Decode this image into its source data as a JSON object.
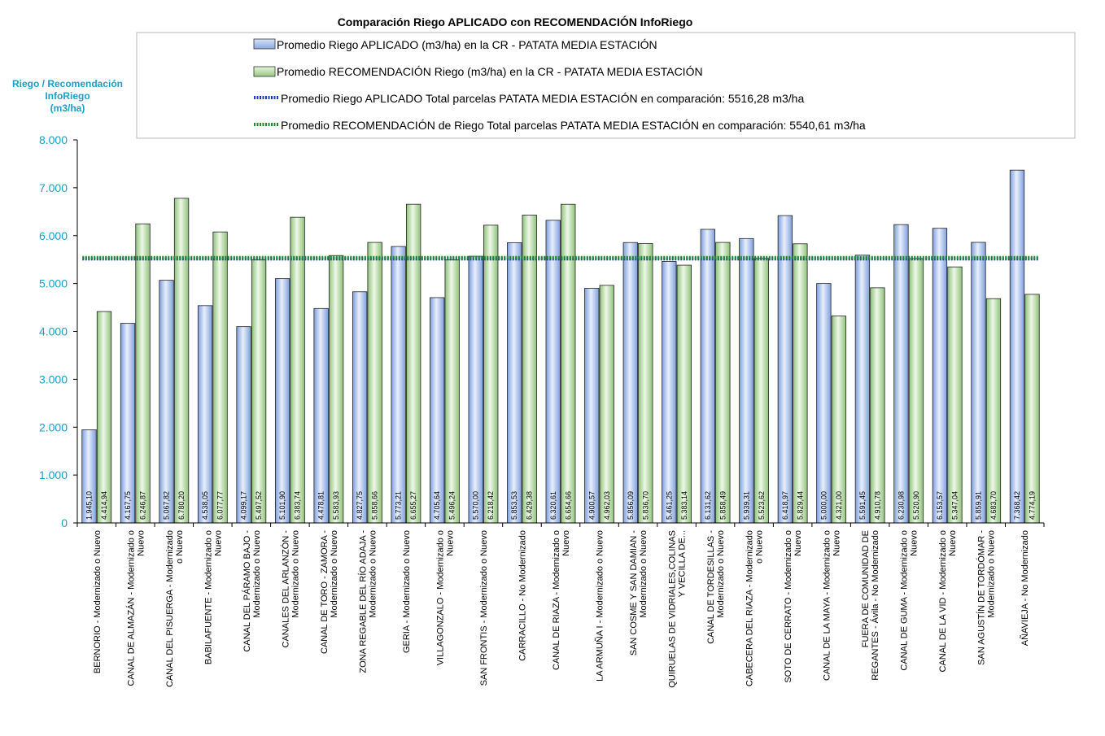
{
  "chart_data": {
    "type": "bar",
    "title": "Comparación Riego APLICADO  con RECOMENDACIÓN  InfoRiego",
    "ylabel_lines": [
      "Riego / Recomendación",
      "InfoRiego",
      "(m3/ha)"
    ],
    "ylim": [
      0,
      8000
    ],
    "yticks": [
      "0",
      "1.000",
      "2.000",
      "3.000",
      "4.000",
      "5.000",
      "6.000",
      "7.000",
      "8.000"
    ],
    "categories": [
      [
        "BERNORIO - Modernizado o Nuevo"
      ],
      [
        "CANAL DE ALMAZÁN - Modernizado o",
        "Nuevo"
      ],
      [
        "CANAL DEL PISUERGA - Modernizado",
        "o Nuevo"
      ],
      [
        "BABILAFUENTE - Modernizado o",
        "Nuevo"
      ],
      [
        "CANAL DEL PÁRAMO BAJO -",
        "Modernizado o Nuevo"
      ],
      [
        "CANALES DEL ARLANZÓN -",
        "Modernizado o Nuevo"
      ],
      [
        "CANAL DE TORO - ZAMORA -",
        "Modernizado o Nuevo"
      ],
      [
        "ZONA REGABLE DEL RÍO ADAJA -",
        "Modernizado o Nuevo"
      ],
      [
        "GERIA - Modernizado o Nuevo"
      ],
      [
        "VILLAGONZALO - Modernizado o",
        "Nuevo"
      ],
      [
        "SAN FRONTIS - Modernizado o Nuevo"
      ],
      [
        "CARRACILLO - No Modernizado"
      ],
      [
        "CANAL DE RIAZA - Modernizado o",
        "Nuevo"
      ],
      [
        "LA ARMUÑA I - Modernizado o Nuevo"
      ],
      [
        "SAN COSME Y SAN DAMIAN -",
        "Modernizado o Nuevo"
      ],
      [
        "QUIRUELAS DE VIDRIALES,COLINAS",
        "Y VECILLA DE..."
      ],
      [
        "CANAL DE TORDESILLAS -",
        "Modernizado o Nuevo"
      ],
      [
        "CABECERA DEL RIAZA - Modernizado",
        "o Nuevo"
      ],
      [
        "SOTO DE CERRATO - Modernizado o",
        "Nuevo"
      ],
      [
        "CANAL DE LA MAYA - Modernizado o",
        "Nuevo"
      ],
      [
        "FUERA DE COMUNIDAD DE",
        "REGANTES - Ávila - No Modernizado"
      ],
      [
        "CANAL DE GUMA - Modernizado o",
        "Nuevo"
      ],
      [
        "CANAL DE LA VID - Modernizado o",
        "Nuevo"
      ],
      [
        "SAN AGUSTÍN DE TORDÓMAR -",
        "Modernizado o Nuevo"
      ],
      [
        "AÑAVIEJA - No Modernizado"
      ]
    ],
    "series": [
      {
        "name": "Promedio Riego APLICADO (m3/ha) en la CR - PATATA MEDIA ESTACIÓN",
        "color": "#a9c4ec",
        "values": [
          1945.1,
          4167.75,
          5067.82,
          4538.05,
          4099.17,
          5101.9,
          4478.81,
          4827.75,
          5773.21,
          4705.64,
          5570.0,
          5853.53,
          6320.61,
          4900.57,
          5856.09,
          5461.25,
          6131.62,
          5939.31,
          6418.97,
          5000.0,
          5591.45,
          6230.98,
          6153.57,
          5859.91,
          7368.42
        ],
        "labels": [
          "1.945,10",
          "4.167,75",
          "5.067,82",
          "4.538,05",
          "4.099,17",
          "5.101,90",
          "4.478,81",
          "4.827,75",
          "5.773,21",
          "4.705,64",
          "5.570,00",
          "5.853,53",
          "6.320,61",
          "4.900,57",
          "5.856,09",
          "5.461,25",
          "6.131,62",
          "5.939,31",
          "6.418,97",
          "5.000,00",
          "5.591,45",
          "6.230,98",
          "6.153,57",
          "5.859,91",
          "7.368,42"
        ]
      },
      {
        "name": "Promedio RECOMENDACIÓN Riego (m3/ha) en la CR - PATATA MEDIA ESTACIÓN",
        "color": "#b8dca8",
        "values": [
          4414.94,
          6246.87,
          6780.2,
          6077.77,
          5497.52,
          6383.74,
          5583.93,
          5858.66,
          6655.27,
          5496.24,
          6218.42,
          6429.38,
          6654.66,
          4962.03,
          5836.7,
          5383.14,
          5858.49,
          5523.62,
          5829.44,
          4321.0,
          4910.78,
          5520.9,
          5347.04,
          4683.7,
          4774.19
        ],
        "labels": [
          "4.414,94",
          "6.246,87",
          "6.780,20",
          "6.077,77",
          "5.497,52",
          "6.383,74",
          "5.583,93",
          "5.858,66",
          "6.655,27",
          "5.496,24",
          "6.218,42",
          "6.429,38",
          "6.654,66",
          "4.962,03",
          "5.836,70",
          "5.383,14",
          "5.858,49",
          "5.523,62",
          "5.829,44",
          "4.321,00",
          "4.910,78",
          "5.520,90",
          "5.347,04",
          "4.683,70",
          "4.774,19"
        ]
      }
    ],
    "reference_lines": [
      {
        "name": "Promedio Riego APLICADO Total parcelas PATATA MEDIA ESTACIÓN en comparación: 5516,28 m3/ha",
        "value": 5516.28,
        "color": "#1f3fbf"
      },
      {
        "name": "Promedio RECOMENDACIÓN de Riego Total parcelas PATATA MEDIA ESTACIÓN en comparación: 5540,61 m3/ha",
        "value": 5540.61,
        "color": "#1a8a2a"
      }
    ],
    "legend_position": "top",
    "grid": false
  }
}
